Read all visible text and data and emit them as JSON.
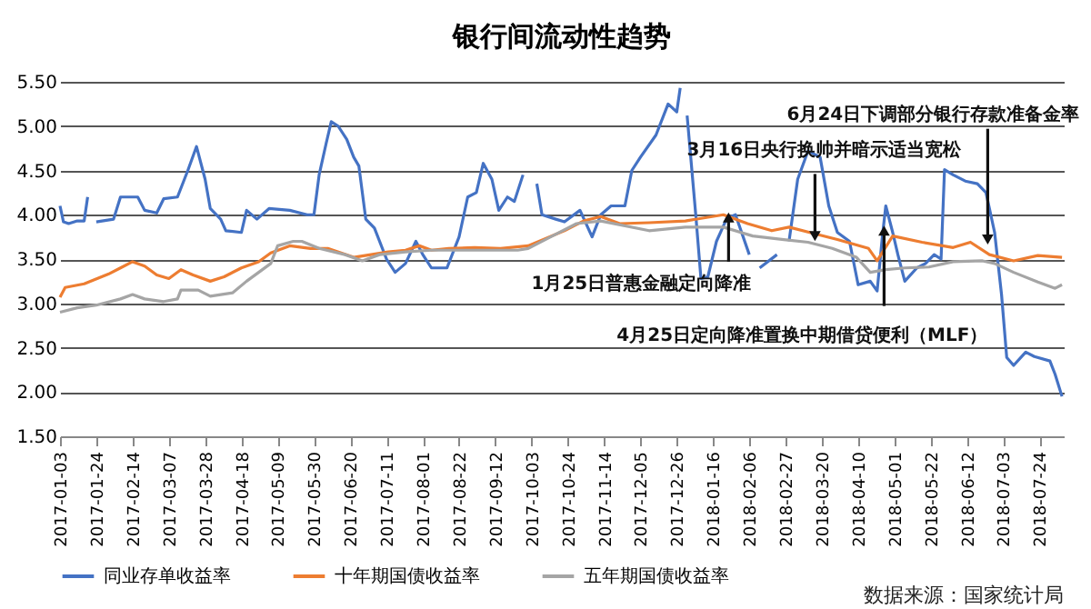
{
  "chart_data": {
    "type": "line",
    "title": "银行间流动性趋势",
    "xlim": [
      "2017-01-03",
      "2018-08-07"
    ],
    "xticks": [
      "2017-01-03",
      "2017-01-24",
      "2017-02-14",
      "2017-03-07",
      "2017-03-28",
      "2017-04-18",
      "2017-05-09",
      "2017-05-30",
      "2017-06-20",
      "2017-07-11",
      "2017-08-01",
      "2017-08-22",
      "2017-09-12",
      "2017-10-03",
      "2017-10-24",
      "2017-11-14",
      "2017-12-05",
      "2017-12-26",
      "2018-01-16",
      "2018-02-06",
      "2018-02-27",
      "2018-03-20",
      "2018-04-10",
      "2018-05-01",
      "2018-05-22",
      "2018-06-12",
      "2018-07-03",
      "2018-07-24"
    ],
    "ylim": [
      1.5,
      5.5
    ],
    "yticks": [
      {
        "value": 1.5,
        "label": "1.50"
      },
      {
        "value": 2.0,
        "label": "2.00"
      },
      {
        "value": 2.5,
        "label": "2.50"
      },
      {
        "value": 3.0,
        "label": "3.00"
      },
      {
        "value": 3.5,
        "label": "3.50"
      },
      {
        "value": 4.0,
        "label": "4.00"
      },
      {
        "value": 4.5,
        "label": "4.50"
      },
      {
        "value": 5.0,
        "label": "5.00"
      },
      {
        "value": 5.5,
        "label": "5.50"
      }
    ],
    "grid": "y",
    "legend": "bottom",
    "line_style": "solid",
    "marker": "none",
    "series": [
      {
        "name": "同业存单收益率",
        "color": "#4472c4",
        "x": [
          "2017-01-03",
          "2017-01-05",
          "2017-01-08",
          "2017-01-13",
          "2017-01-17",
          "2017-01-19",
          "2017-01-20",
          "2017-01-24",
          "2017-02-03",
          "2017-02-07",
          "2017-02-17",
          "2017-02-21",
          "2017-02-28",
          "2017-03-04",
          "2017-03-12",
          "2017-03-18",
          "2017-03-23",
          "2017-03-28",
          "2017-03-31",
          "2017-04-06",
          "2017-04-09",
          "2017-04-18",
          "2017-04-21",
          "2017-04-27",
          "2017-05-04",
          "2017-05-16",
          "2017-05-26",
          "2017-05-30",
          "2017-06-02",
          "2017-06-06",
          "2017-06-09",
          "2017-06-13",
          "2017-06-18",
          "2017-06-22",
          "2017-06-25",
          "2017-06-29",
          "2017-07-04",
          "2017-07-11",
          "2017-07-16",
          "2017-07-22",
          "2017-07-28",
          "2017-08-01",
          "2017-08-06",
          "2017-08-15",
          "2017-08-22",
          "2017-08-27",
          "2017-09-01",
          "2017-09-05",
          "2017-09-10",
          "2017-09-14",
          "2017-09-19",
          "2017-09-23",
          "2017-09-28",
          "2017-09-30",
          "2017-10-06",
          "2017-10-09",
          "2017-10-17",
          "2017-10-22",
          "2017-10-31",
          "2017-11-07",
          "2017-11-12",
          "2017-11-18",
          "2017-11-26",
          "2017-11-30",
          "2017-12-05",
          "2017-12-14",
          "2017-12-21",
          "2017-12-26",
          "2017-12-28",
          "2017-12-30",
          "2018-01-01",
          "2018-01-06",
          "2018-01-09",
          "2018-01-13",
          "2018-01-18",
          "2018-01-24",
          "2018-01-29",
          "2018-02-06",
          "2018-02-08",
          "2018-02-12",
          "2018-02-22",
          "2018-02-25",
          "2018-03-01",
          "2018-03-06",
          "2018-03-12",
          "2018-03-19",
          "2018-03-24",
          "2018-03-29",
          "2018-04-05",
          "2018-04-10",
          "2018-04-17",
          "2018-04-21",
          "2018-04-24",
          "2018-04-26",
          "2018-04-30",
          "2018-05-03",
          "2018-05-07",
          "2018-05-14",
          "2018-05-19",
          "2018-05-24",
          "2018-05-28",
          "2018-05-30",
          "2018-06-04",
          "2018-06-11",
          "2018-06-18",
          "2018-06-23",
          "2018-06-28",
          "2018-07-02",
          "2018-07-05",
          "2018-07-09",
          "2018-07-16",
          "2018-07-21",
          "2018-07-30",
          "2018-08-02",
          "2018-08-06"
        ],
        "values": [
          4.1,
          3.92,
          3.9,
          3.93,
          3.93,
          4.2,
          null,
          3.92,
          3.95,
          4.2,
          4.2,
          4.05,
          4.02,
          4.18,
          4.2,
          4.5,
          4.77,
          4.4,
          4.07,
          3.95,
          3.82,
          3.8,
          4.05,
          3.95,
          4.07,
          4.05,
          4.0,
          4.0,
          4.45,
          4.8,
          5.05,
          5.0,
          4.85,
          4.65,
          4.55,
          3.95,
          3.85,
          3.5,
          3.35,
          3.45,
          3.7,
          3.55,
          3.4,
          3.4,
          3.75,
          4.2,
          4.25,
          4.58,
          4.4,
          4.05,
          4.2,
          4.15,
          4.45,
          null,
          4.35,
          4.0,
          3.95,
          3.92,
          4.05,
          3.75,
          4.0,
          4.1,
          4.1,
          4.5,
          4.65,
          4.9,
          5.25,
          5.16,
          5.43,
          null,
          5.12,
          4.0,
          3.28,
          3.3,
          3.7,
          3.96,
          4.0,
          3.55,
          null,
          3.4,
          3.55,
          null,
          3.7,
          4.4,
          4.72,
          4.65,
          4.1,
          3.8,
          3.7,
          3.21,
          3.25,
          3.14,
          3.75,
          4.1,
          3.8,
          3.55,
          3.25,
          3.4,
          3.45,
          3.55,
          3.5,
          4.51,
          4.45,
          4.38,
          4.35,
          4.25,
          3.8,
          3.1,
          2.39,
          2.3,
          2.45,
          2.4,
          2.35,
          2.2,
          1.95
        ]
      },
      {
        "name": "十年期国债收益率",
        "color": "#ed7d31",
        "x": [
          "2017-01-03",
          "2017-01-06",
          "2017-01-17",
          "2017-01-31",
          "2017-02-07",
          "2017-02-14",
          "2017-02-21",
          "2017-02-28",
          "2017-03-07",
          "2017-03-14",
          "2017-03-21",
          "2017-03-31",
          "2017-04-08",
          "2017-04-18",
          "2017-04-28",
          "2017-05-05",
          "2017-05-16",
          "2017-05-28",
          "2017-06-07",
          "2017-06-22",
          "2017-07-02",
          "2017-07-12",
          "2017-07-22",
          "2017-07-30",
          "2017-08-06",
          "2017-08-16",
          "2017-08-31",
          "2017-09-15",
          "2017-10-01",
          "2017-10-22",
          "2017-11-02",
          "2017-11-12",
          "2017-11-23",
          "2017-12-10",
          "2017-12-31",
          "2018-01-22",
          "2018-02-05",
          "2018-02-19",
          "2018-03-01",
          "2018-03-15",
          "2018-03-29",
          "2018-04-16",
          "2018-04-21",
          "2018-04-30",
          "2018-05-17",
          "2018-06-04",
          "2018-06-14",
          "2018-06-25",
          "2018-07-09",
          "2018-07-23",
          "2018-08-06"
        ],
        "values": [
          3.07,
          3.18,
          3.22,
          3.33,
          3.4,
          3.47,
          3.42,
          3.32,
          3.28,
          3.38,
          3.32,
          3.25,
          3.3,
          3.4,
          3.47,
          3.57,
          3.65,
          3.62,
          3.62,
          3.52,
          3.55,
          3.58,
          3.6,
          3.65,
          3.6,
          3.62,
          3.63,
          3.62,
          3.65,
          3.82,
          3.93,
          3.98,
          3.9,
          3.91,
          3.93,
          4.0,
          3.9,
          3.82,
          3.86,
          3.79,
          3.72,
          3.62,
          3.48,
          3.76,
          3.69,
          3.63,
          3.69,
          3.55,
          3.48,
          3.54,
          3.52
        ]
      },
      {
        "name": "五年期国债收益率",
        "color": "#a5a5a5",
        "x": [
          "2017-01-03",
          "2017-01-13",
          "2017-01-24",
          "2017-02-07",
          "2017-02-14",
          "2017-02-21",
          "2017-03-04",
          "2017-03-12",
          "2017-03-14",
          "2017-03-24",
          "2017-03-31",
          "2017-04-13",
          "2017-04-21",
          "2017-04-28",
          "2017-05-05",
          "2017-05-09",
          "2017-05-18",
          "2017-05-23",
          "2017-06-02",
          "2017-06-17",
          "2017-06-27",
          "2017-07-07",
          "2017-07-22",
          "2017-08-06",
          "2017-08-16",
          "2017-09-05",
          "2017-09-25",
          "2017-10-01",
          "2017-10-15",
          "2017-10-29",
          "2017-11-12",
          "2017-12-10",
          "2017-12-31",
          "2018-01-22",
          "2018-02-08",
          "2018-02-26",
          "2018-03-12",
          "2018-03-26",
          "2018-04-09",
          "2018-04-17",
          "2018-04-26",
          "2018-05-07",
          "2018-05-21",
          "2018-06-04",
          "2018-06-21",
          "2018-06-28",
          "2018-07-09",
          "2018-07-23",
          "2018-08-02",
          "2018-08-06"
        ],
        "values": [
          2.9,
          2.95,
          2.98,
          3.05,
          3.1,
          3.05,
          3.02,
          3.05,
          3.15,
          3.15,
          3.08,
          3.12,
          3.25,
          3.35,
          3.45,
          3.65,
          3.7,
          3.7,
          3.62,
          3.55,
          3.48,
          3.55,
          3.58,
          3.6,
          3.6,
          3.6,
          3.6,
          3.62,
          3.76,
          3.9,
          3.93,
          3.82,
          3.86,
          3.86,
          3.76,
          3.72,
          3.69,
          3.62,
          3.52,
          3.35,
          3.38,
          3.4,
          3.41,
          3.47,
          3.48,
          3.45,
          3.35,
          3.24,
          3.17,
          3.21
        ]
      }
    ],
    "annotations": [
      {
        "text": "1月25日普惠金融定向降准",
        "x": "2018-01-25",
        "y": 3.97
      },
      {
        "text": "3月16日央行换帅并暗示适当宽松",
        "x": "2018-03-16",
        "y": 3.76
      },
      {
        "text": "4月25日定向降准置换中期借贷便利（MLF）",
        "x": "2018-04-25",
        "y": 3.82
      },
      {
        "text": "6月24日下调部分银行存款准备金率",
        "x": "2018-06-24",
        "y": 3.72
      },
      "数据来源：国家统计局"
    ]
  }
}
